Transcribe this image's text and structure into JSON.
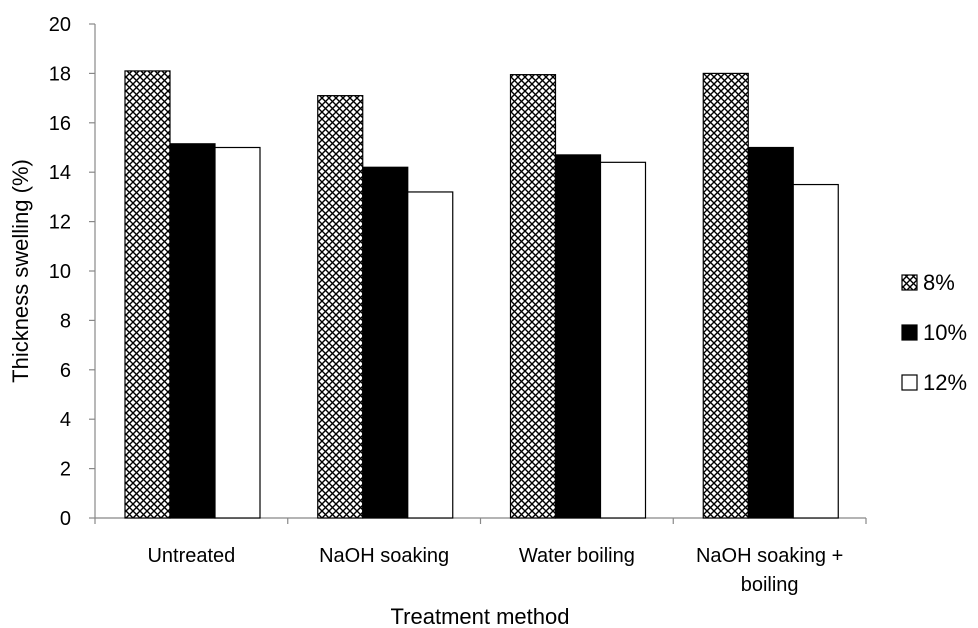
{
  "chart_data": {
    "type": "bar",
    "title": "",
    "xlabel": "Treatment method",
    "ylabel": "Thickness swelling (%)",
    "ylim": [
      0,
      20
    ],
    "yticks": [
      0,
      2,
      4,
      6,
      8,
      10,
      12,
      14,
      16,
      18,
      20
    ],
    "grid": false,
    "legend_position": "right",
    "categories": [
      [
        "Untreated"
      ],
      [
        "NaOH soaking"
      ],
      [
        "Water boiling"
      ],
      [
        "NaOH soaking +",
        "boiling"
      ]
    ],
    "series": [
      {
        "name": "8%",
        "fill": "crosshatch",
        "values": [
          18.1,
          17.1,
          17.95,
          18.0
        ]
      },
      {
        "name": "10%",
        "fill": "#000000",
        "values": [
          15.15,
          14.2,
          14.7,
          15.0
        ]
      },
      {
        "name": "12%",
        "fill": "#ffffff",
        "values": [
          15.0,
          13.2,
          14.4,
          13.5
        ]
      }
    ]
  },
  "colors": {
    "axis": "#888888",
    "bar_outline": "#000000",
    "hatch": "#000000"
  }
}
